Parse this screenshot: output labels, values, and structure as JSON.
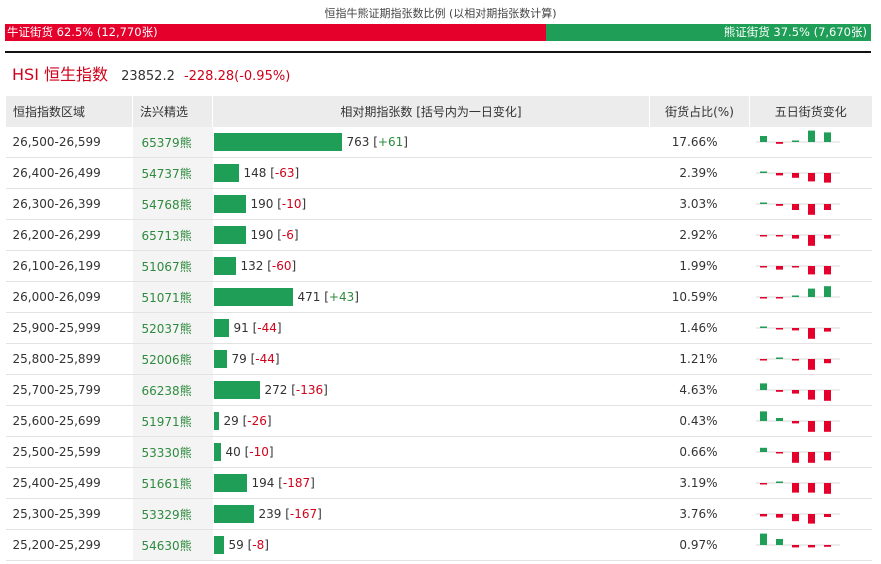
{
  "header": {
    "title": "恒指牛熊证期指张数比例 (以相对期指张数计算)",
    "bull_label": "牛证街货 62.5% (12,770张)",
    "bear_label": "熊证街货 37.5% (7,670张)",
    "bull_pct": 62.5,
    "bear_pct": 37.5
  },
  "index": {
    "name": "HSI 恒生指数",
    "price": "23852.2",
    "change": "-228.28(-0.95%)"
  },
  "table": {
    "headers": {
      "range": "恒指指数区域",
      "code": "法兴精选",
      "contracts": "相对期指张数 [括号内为一日变化]",
      "pct": "街货占比(%)",
      "trend": "五日街货变化"
    },
    "rows": [
      {
        "range": "26,500-26,599",
        "code": "65379",
        "suffix": "熊",
        "value": 763,
        "value_text": "763",
        "change": "+61",
        "pct": "17.66%",
        "trend": [
          0.5,
          -0.15,
          0.05,
          0.95,
          0.8
        ]
      },
      {
        "range": "26,400-26,499",
        "code": "54737",
        "suffix": "熊",
        "value": 148,
        "value_text": "148",
        "change": "-63",
        "pct": "2.39%",
        "trend": [
          0.1,
          -0.2,
          -0.4,
          -0.7,
          -0.8
        ]
      },
      {
        "range": "26,300-26,399",
        "code": "54768",
        "suffix": "熊",
        "value": 190,
        "value_text": "190",
        "change": "-10",
        "pct": "3.03%",
        "trend": [
          0.1,
          -0.15,
          -0.5,
          -0.9,
          -0.5
        ]
      },
      {
        "range": "26,200-26,299",
        "code": "65713",
        "suffix": "熊",
        "value": 190,
        "value_text": "190",
        "change": "-6",
        "pct": "2.92%",
        "trend": [
          -0.05,
          -0.1,
          -0.3,
          -0.9,
          -0.3
        ]
      },
      {
        "range": "26,100-26,199",
        "code": "51067",
        "suffix": "熊",
        "value": 132,
        "value_text": "132",
        "change": "-60",
        "pct": "1.99%",
        "trend": [
          -0.05,
          -0.3,
          -0.1,
          -0.7,
          -0.7
        ]
      },
      {
        "range": "26,000-26,099",
        "code": "51071",
        "suffix": "熊",
        "value": 471,
        "value_text": "471",
        "change": "+43",
        "pct": "10.59%",
        "trend": [
          -0.05,
          -0.1,
          0.1,
          0.7,
          0.9
        ]
      },
      {
        "range": "25,900-25,999",
        "code": "52037",
        "suffix": "熊",
        "value": 91,
        "value_text": "91",
        "change": "-44",
        "pct": "1.46%",
        "trend": [
          0.05,
          -0.1,
          -0.2,
          -0.9,
          -0.3
        ]
      },
      {
        "range": "25,800-25,899",
        "code": "52006",
        "suffix": "熊",
        "value": 79,
        "value_text": "79",
        "change": "-44",
        "pct": "1.21%",
        "trend": [
          -0.1,
          0.1,
          -0.1,
          -0.9,
          -0.35
        ]
      },
      {
        "range": "25,700-25,799",
        "code": "66238",
        "suffix": "熊",
        "value": 272,
        "value_text": "272",
        "change": "-136",
        "pct": "4.63%",
        "trend": [
          0.55,
          -0.15,
          -0.3,
          -0.8,
          -0.9
        ]
      },
      {
        "range": "25,600-25,699",
        "code": "51971",
        "suffix": "熊",
        "value": 29,
        "value_text": "29",
        "change": "-26",
        "pct": "0.43%",
        "trend": [
          0.8,
          0.25,
          -0.2,
          -0.9,
          -0.9
        ]
      },
      {
        "range": "25,500-25,599",
        "code": "53330",
        "suffix": "熊",
        "value": 40,
        "value_text": "40",
        "change": "-10",
        "pct": "0.66%",
        "trend": [
          0.35,
          -0.1,
          -0.9,
          -0.9,
          -0.7
        ]
      },
      {
        "range": "25,400-25,499",
        "code": "51661",
        "suffix": "熊",
        "value": 194,
        "value_text": "194",
        "change": "-187",
        "pct": "3.19%",
        "trend": [
          -0.1,
          0.1,
          -0.8,
          -0.8,
          -0.9
        ]
      },
      {
        "range": "25,300-25,399",
        "code": "53329",
        "suffix": "熊",
        "value": 239,
        "value_text": "239",
        "change": "-167",
        "pct": "3.76%",
        "trend": [
          -0.2,
          -0.3,
          -0.6,
          -0.8,
          -0.25
        ]
      },
      {
        "range": "25,200-25,299",
        "code": "54630",
        "suffix": "熊",
        "value": 59,
        "value_text": "59",
        "change": "-8",
        "pct": "0.97%",
        "trend": [
          0.95,
          0.5,
          -0.2,
          -0.2,
          -0.15
        ]
      }
    ]
  },
  "colors": {
    "bull": "#e4002b",
    "bear": "#1e9e57",
    "neg": "#d0021b",
    "pos": "#2e8b3e"
  }
}
